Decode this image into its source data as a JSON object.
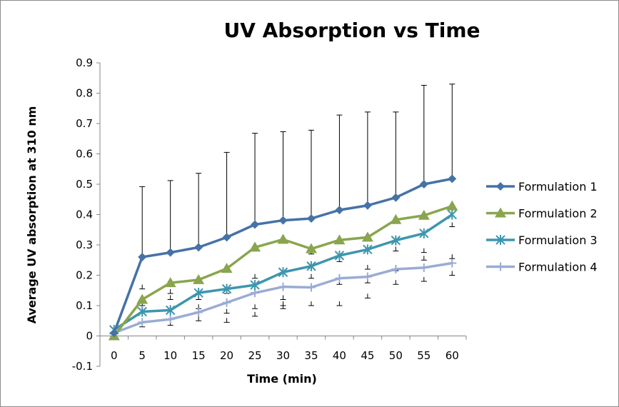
{
  "chart_data": {
    "type": "line",
    "title": "UV Absorption vs Time",
    "xlabel": "Time (min)",
    "ylabel": "Average UV  absorption at  310 nm",
    "x": [
      0,
      5,
      10,
      15,
      20,
      25,
      30,
      35,
      40,
      45,
      50,
      55,
      60
    ],
    "x_tick_labels": [
      "0",
      "5",
      "10",
      "15",
      "20",
      "25",
      "30",
      "35",
      "40",
      "45",
      "50",
      "55",
      "60"
    ],
    "ylim": [
      -0.1,
      0.9
    ],
    "y_ticks": [
      -0.1,
      0,
      0.1,
      0.2,
      0.3,
      0.4,
      0.5,
      0.6,
      0.7,
      0.8,
      0.9
    ],
    "y_tick_labels": [
      "-0.1",
      "0",
      "0.1",
      "0.2",
      "0.3",
      "0.4",
      "0.5",
      "0.6",
      "0.7",
      "0.8",
      "0.9"
    ],
    "grid": false,
    "legend_position": "right",
    "series": [
      {
        "name": "Formulation 1",
        "color": "#4572a7",
        "marker": "diamond",
        "values": [
          0.01,
          0.26,
          0.275,
          0.292,
          0.325,
          0.367,
          0.381,
          0.387,
          0.415,
          0.43,
          0.456,
          0.5,
          0.518
        ],
        "error_upper": [
          0.0,
          0.492,
          0.512,
          0.536,
          0.605,
          0.668,
          0.673,
          0.678,
          0.728,
          0.738,
          0.738,
          0.826,
          0.83
        ]
      },
      {
        "name": "Formulation 2",
        "color": "#89a54e",
        "marker": "triangle",
        "values": [
          0.0,
          0.12,
          0.175,
          0.185,
          0.222,
          0.292,
          0.318,
          0.287,
          0.316,
          0.325,
          0.383,
          0.397,
          0.428
        ],
        "error_upper": null
      },
      {
        "name": "Formulation 3",
        "color": "#3d96ae",
        "marker": "star",
        "values": [
          0.02,
          0.08,
          0.085,
          0.142,
          0.155,
          0.168,
          0.21,
          0.23,
          0.265,
          0.285,
          0.315,
          0.338,
          0.4
        ],
        "error_upper": null
      },
      {
        "name": "Formulation 4",
        "color": "#9aabd4",
        "marker": "plus",
        "values": [
          0.01,
          0.045,
          0.055,
          0.078,
          0.11,
          0.142,
          0.162,
          0.16,
          0.19,
          0.195,
          0.22,
          0.225,
          0.24
        ],
        "error_upper": null
      }
    ],
    "error_bars": [
      {
        "x": 5,
        "lows": [
          0.03,
          0.1,
          0.155
        ]
      },
      {
        "x": 10,
        "lows": [
          0.035,
          0.12,
          0.14
        ]
      },
      {
        "x": 15,
        "lows": [
          0.05,
          0.09,
          0.12
        ]
      },
      {
        "x": 20,
        "lows": [
          0.045,
          0.075,
          0.14
        ]
      },
      {
        "x": 25,
        "lows": [
          0.065,
          0.09,
          0.19
        ]
      },
      {
        "x": 30,
        "lows": [
          0.09,
          0.1,
          0.12
        ]
      },
      {
        "x": 35,
        "lows": [
          0.1,
          0.19,
          0.27
        ]
      },
      {
        "x": 40,
        "lows": [
          0.1,
          0.17,
          0.245
        ]
      },
      {
        "x": 45,
        "lows": [
          0.125,
          0.175,
          0.22
        ]
      },
      {
        "x": 50,
        "lows": [
          0.17,
          0.215,
          0.28
        ]
      },
      {
        "x": 55,
        "lows": [
          0.18,
          0.25,
          0.275
        ]
      },
      {
        "x": 60,
        "lows": [
          0.2,
          0.255,
          0.36
        ]
      }
    ]
  }
}
